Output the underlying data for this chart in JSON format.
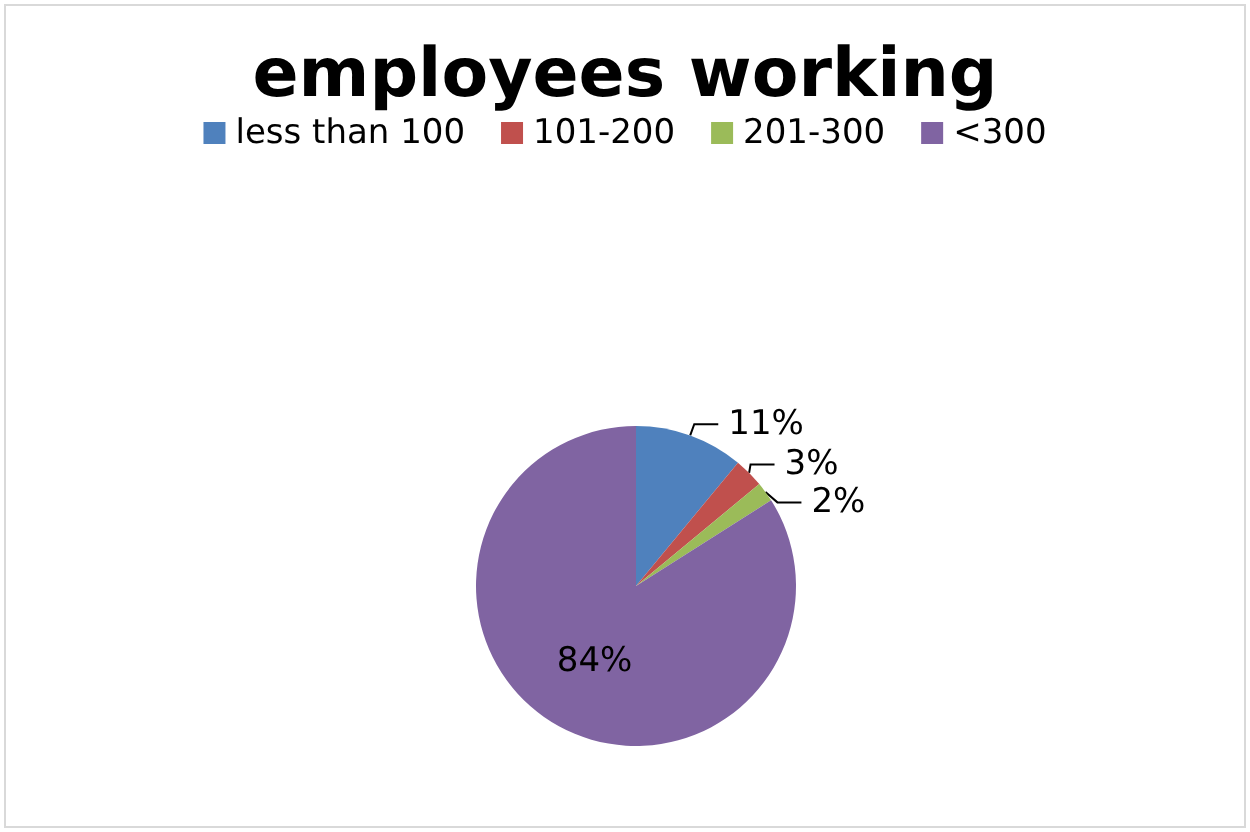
{
  "chart_data": {
    "type": "pie",
    "title": "employees working",
    "categories": [
      "less than 100",
      "101-200",
      "201-300",
      "<300"
    ],
    "values": [
      11,
      3,
      2,
      84
    ],
    "colors": [
      "#4f81bd",
      "#c0504d",
      "#9bbb59",
      "#8064a2"
    ],
    "value_labels": [
      "11%",
      "3%",
      "2%",
      "84%"
    ],
    "legend": "top"
  }
}
